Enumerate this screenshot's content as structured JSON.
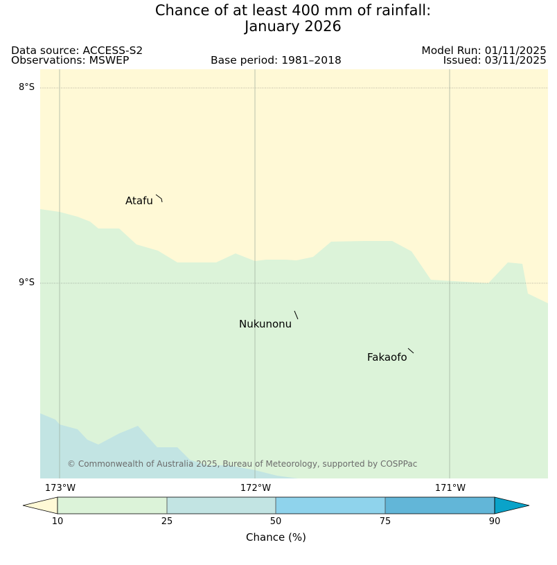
{
  "title": {
    "line1": "Chance of at least 400 mm of rainfall:",
    "line2": "January 2026"
  },
  "header": {
    "data_source": "Data source: ACCESS-S2",
    "observations": "Observations: MSWEP",
    "base_period": "Base period: 1981–2018",
    "model_run": "Model Run: 01/11/2025",
    "issued": "Issued: 03/11/2025"
  },
  "map": {
    "lat_labels": [
      "8°S",
      "9°S"
    ],
    "lon_labels": [
      "173°W",
      "172°W",
      "171°W"
    ],
    "places": [
      {
        "name": "Atafu",
        "lat": -8.56,
        "lon": -172.48
      },
      {
        "name": "Nukunonu",
        "lat": -9.18,
        "lon": -171.79
      },
      {
        "name": "Fakaofo",
        "lat": -9.37,
        "lon": -171.21
      }
    ],
    "copyright": "© Commonwealth of Australia 2025, Bureau of Meteorology, supported by COSPPac"
  },
  "colorbar": {
    "label": "Chance (%)",
    "ticks": [
      "10",
      "25",
      "50",
      "75",
      "90"
    ],
    "colors": {
      "under10": "#fff9d6",
      "c10_25": "#dcf3d9",
      "c25_50": "#c2e4e3",
      "c50_75": "#8fd3ec",
      "c75_90": "#62b6d8",
      "over90": "#0aa3c9"
    }
  }
}
